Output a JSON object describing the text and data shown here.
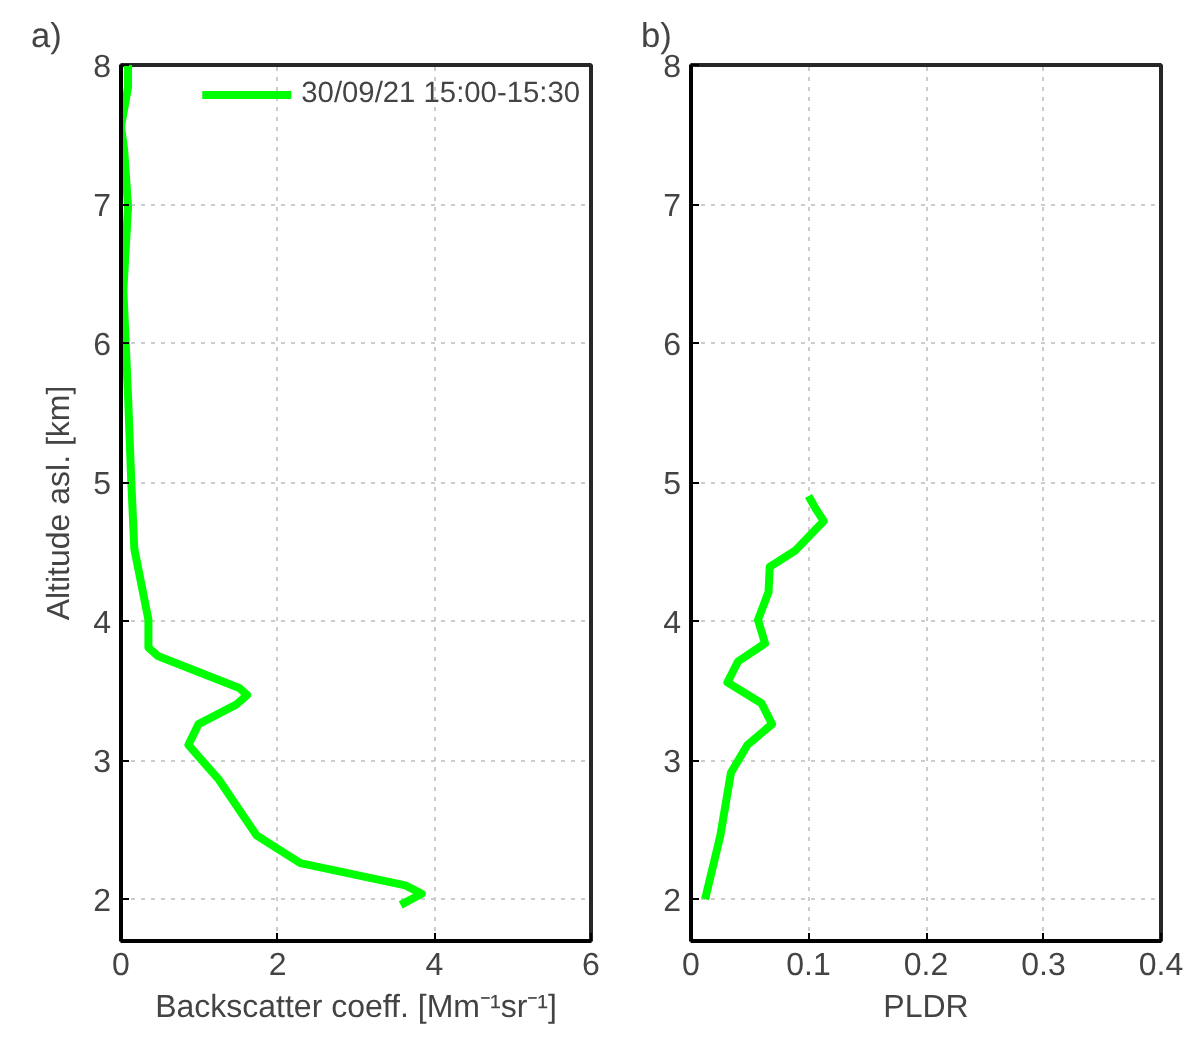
{
  "chart_data": [
    {
      "type": "line",
      "title": "a)",
      "xlabel": "Backscatter coeff. [Mm⁻¹sr⁻¹]",
      "ylabel": "Altitude asl. [km]",
      "xlim": [
        0,
        6
      ],
      "xticks": [
        0,
        2,
        4,
        6
      ],
      "ylim": [
        1.7,
        8
      ],
      "yticks": [
        2,
        3,
        4,
        5,
        6,
        7,
        8
      ],
      "grid": true,
      "legend": "top right",
      "series": [
        {
          "name": "30/09/21 15:00-15:30",
          "color": "#00ff00",
          "x": [
            3.57,
            3.84,
            3.63,
            2.29,
            1.73,
            1.25,
            0.86,
            0.99,
            1.47,
            1.61,
            1.51,
            0.47,
            0.35,
            0.35,
            0.17,
            0.13,
            0.09,
            0.03,
            0.09,
            0.04,
            0.0,
            0.09,
            0.09
          ],
          "values": [
            1.96,
            2.04,
            2.1,
            2.26,
            2.46,
            2.86,
            3.11,
            3.26,
            3.4,
            3.47,
            3.52,
            3.75,
            3.81,
            4.01,
            4.52,
            5.02,
            5.62,
            6.38,
            6.98,
            7.39,
            7.56,
            7.84,
            8.0
          ]
        }
      ]
    },
    {
      "type": "line",
      "title": "b)",
      "xlabel": "PLDR",
      "xlim": [
        0,
        0.4
      ],
      "xticks": [
        0,
        0.1,
        0.2,
        0.3,
        0.4
      ],
      "ylim": [
        1.7,
        8
      ],
      "yticks": [
        2,
        3,
        4,
        5,
        6,
        7,
        8
      ],
      "grid": true,
      "series": [
        {
          "color": "#00ff00",
          "x": [
            0.012,
            0.025,
            0.034,
            0.048,
            0.069,
            0.06,
            0.031,
            0.04,
            0.063,
            0.057,
            0.066,
            0.067,
            0.089,
            0.113,
            0.106,
            0.1
          ],
          "values": [
            2.0,
            2.46,
            2.91,
            3.11,
            3.26,
            3.41,
            3.56,
            3.71,
            3.84,
            4.01,
            4.21,
            4.39,
            4.51,
            4.72,
            4.81,
            4.9
          ]
        }
      ]
    }
  ]
}
